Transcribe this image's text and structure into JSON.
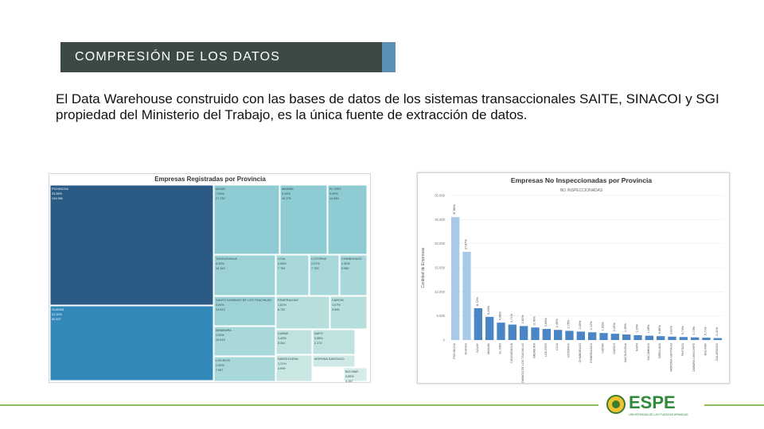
{
  "slide": {
    "title": "COMPRESIÓN DE LOS DATOS",
    "body": "El Data Warehouse construido con las bases de datos de los sistemas transaccionales SAITE, SINACOI y SGI propiedad del Ministerio del Trabajo, es la única fuente de extracción de datos.",
    "logo_text": "ESPE",
    "logo_subtitle": "UNIVERSIDAD DE LAS FUERZAS ARMADAS"
  },
  "colors": {
    "band": "#3b4a47",
    "accent": "#5b8fb3",
    "green": "#8cbf5b",
    "bar": "#5b9bd5"
  },
  "chart_data": [
    {
      "type": "treemap",
      "title": "Empresas Registradas por Provincia",
      "cells": [
        {
          "label": "PICHINCHA",
          "pct": "33,38%",
          "value": "124.356"
        },
        {
          "label": "GUAYAS",
          "pct": "22,16%",
          "value": "82.627"
        },
        {
          "label": "AZUAY",
          "pct": "7,44%",
          "value": "27.732"
        },
        {
          "label": "MANABI",
          "pct": "5,14%",
          "value": "19.175"
        },
        {
          "label": "EL ORO",
          "pct": "3,99%",
          "value": "14.865"
        },
        {
          "label": "TUNGURAHUA",
          "pct": "4,33%",
          "value": "16.145"
        },
        {
          "label": "LOJA",
          "pct": "2,08%",
          "value": "7.764"
        },
        {
          "label": "COTOPAXI",
          "pct": "2,07%",
          "value": "7.700"
        },
        {
          "label": "CHIMBORAZO",
          "pct": "2,30%",
          "value": "8.580"
        },
        {
          "label": "SANTO DOMINGO DE LOS TSACHILAS",
          "pct": "4,00%",
          "value": "14.913"
        },
        {
          "label": "IMBABURA",
          "pct": "2,93%",
          "value": "10.915"
        },
        {
          "label": "ESMERALDAS",
          "pct": "1,81%",
          "value": "6.737"
        },
        {
          "label": "CARCHI",
          "pct": "1,07%",
          "value": "3.999"
        },
        {
          "label": "CAÑAR",
          "pct": "1,43%",
          "value": "5.341"
        },
        {
          "label": "NAPO",
          "pct": "0,58%",
          "value": "2.170"
        },
        {
          "label": "LOS RIOS",
          "pct": "2,05%",
          "value": "7.657"
        },
        {
          "label": "SANTA ELENA",
          "pct": "1,21%",
          "value": "4.506"
        },
        {
          "label": "MORONA SANTIAGO",
          "pct": "",
          "value": ""
        },
        {
          "label": "BOLIVAR",
          "pct": "0,85%",
          "value": "3.167"
        }
      ]
    },
    {
      "type": "bar",
      "title": "Empresas No Inspeccionadas por Provincia",
      "subtitle": "NO INSPECCIONADAS",
      "ylabel": "Cantidad de Empresas",
      "ylim": [
        0,
        30000
      ],
      "yticks": [
        "0",
        "5.000",
        "10.000",
        "15.000",
        "20.000",
        "25.000",
        "30.000"
      ],
      "categories": [
        "PICHINCHA",
        "GUAYAS",
        "AZUAY",
        "MANABI",
        "EL ORO",
        "TUNGURAHUA",
        "SANTO DOMINGO DE LOS TSACHILAS",
        "IMBABURA",
        "LOS RIOS",
        "LOJA",
        "COTOPAXI",
        "CHIMBORAZO",
        "ESMERALDAS",
        "CAÑAR",
        "CARCHI",
        "SANTA ELENA",
        "NAPO",
        "SUCUMBIOS",
        "ORELLANA",
        "MORONA SANTIAGO",
        "PASTAZA",
        "ZAMORA CHINCHIPE",
        "BOLIVAR",
        "GALAPAGOS"
      ],
      "values": [
        25500,
        18300,
        6600,
        4800,
        3600,
        3200,
        2900,
        2600,
        2300,
        2100,
        1900,
        1750,
        1600,
        1450,
        1300,
        1150,
        1000,
        900,
        800,
        700,
        620,
        550,
        480,
        400
      ],
      "labels": [
        "37,88%",
        "27,87%",
        "8,72%",
        "5,23%",
        "4,08%",
        "4,71%",
        "2,62%",
        "3,78%",
        "2,83%",
        "2,45%",
        "2,75%",
        "2,00%",
        "2,12%",
        "1,53%",
        "2,20%",
        "1,49%",
        "1,20%",
        "1,05%",
        "0,88%",
        "0,81%",
        "0,74%",
        "0,73%",
        "0,71%",
        "0,41%"
      ]
    }
  ]
}
